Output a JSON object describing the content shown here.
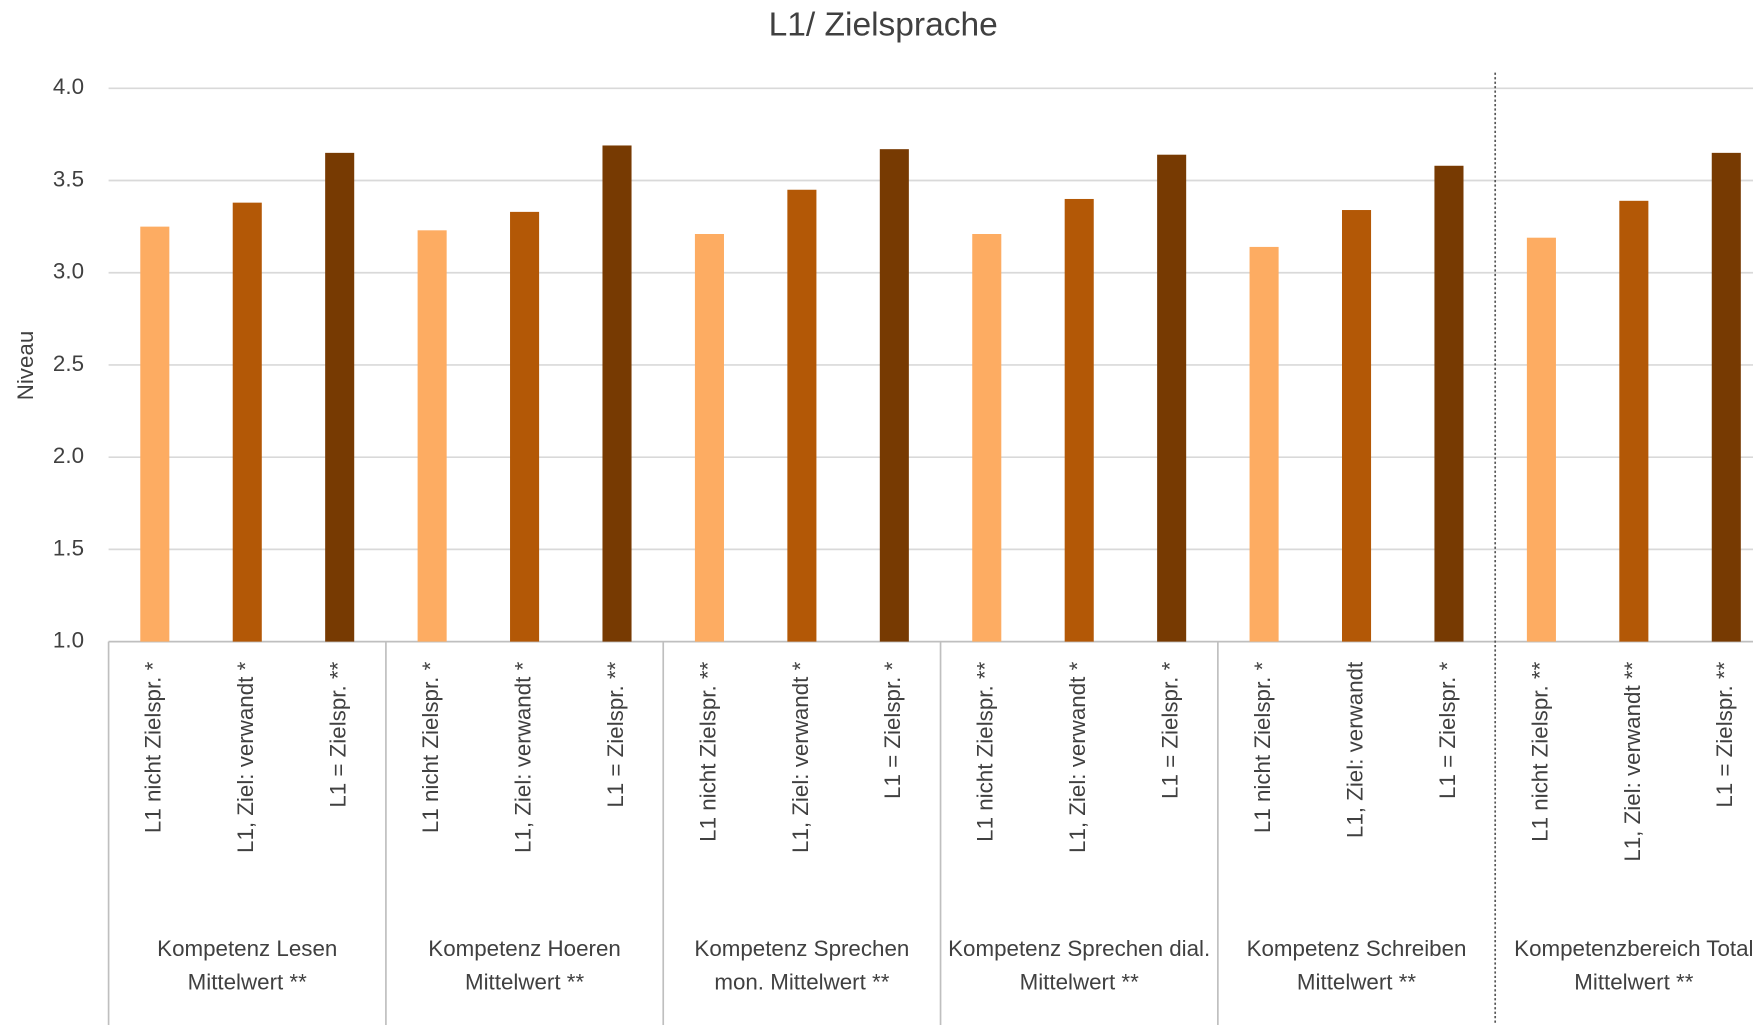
{
  "chart_data": {
    "type": "bar",
    "title": "L1/ Zielsprache",
    "y_label": "Niveau",
    "groups": [
      "Kompetenz Lesen Mittelwert **",
      "Kompetenz Hoeren Mittelwert **",
      "Kompetenz Sprechen mon. Mittelwert **",
      "Kompetenz Sprechen dial. Mittelwert **",
      "Kompetenz Schreiben Mittelwert **",
      "Kompetenzbereich Total Mittelwert **"
    ],
    "categories": [
      "L1 nicht Zielspr. *",
      "L1, Ziel: verwandt *",
      "L1 = Zielspr. **",
      "L1 nicht Zielspr. *",
      "L1, Ziel: verwandt *",
      "L1 = Zielspr. **",
      "L1 nicht Zielspr. **",
      "L1, Ziel: verwandt *",
      "L1 = Zielspr. *",
      "L1 nicht Zielspr. **",
      "L1, Ziel: verwandt *",
      "L1 = Zielspr. *",
      "L1 nicht Zielspr. *",
      "L1, Ziel: verwandt",
      "L1 = Zielspr. *",
      "L1 nicht Zielspr. **",
      "L1, Ziel: verwandt **",
      "L1 = Zielspr. **"
    ],
    "values": [
      3.25,
      3.38,
      3.65,
      3.23,
      3.33,
      3.69,
      3.21,
      3.45,
      3.67,
      3.21,
      3.4,
      3.64,
      3.14,
      3.34,
      3.58,
      3.19,
      3.39,
      3.65
    ],
    "colors": [
      "#fdac62",
      "#b35806",
      "#773a02"
    ],
    "ylim": [
      1.0,
      4.0
    ],
    "yticks": [
      {
        "value": 1,
        "label": "1.0"
      },
      {
        "value": 1.5,
        "label": "1.5"
      },
      {
        "value": 2,
        "label": "2.0"
      },
      {
        "value": 2.5,
        "label": "2.5"
      },
      {
        "value": 3,
        "label": "3.0"
      },
      {
        "value": 3.5,
        "label": "3.5"
      },
      {
        "value": 4,
        "label": "4.0"
      }
    ],
    "grid": true
  }
}
